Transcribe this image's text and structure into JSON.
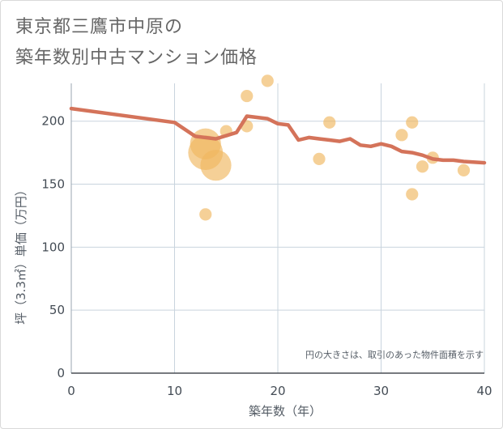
{
  "title_lines": [
    "東京都三鷹市中原の",
    "築年数別中古マンション価格"
  ],
  "chart_data": {
    "type": "scatter",
    "xlabel": "築年数（年）",
    "ylabel": "坪（3.3㎡）単価（万円）",
    "xlim": [
      0,
      40
    ],
    "ylim": [
      0,
      230
    ],
    "xticks": [
      0,
      10,
      20,
      30,
      40
    ],
    "yticks": [
      0,
      50,
      100,
      150,
      200
    ],
    "grid": true,
    "annotation": "円の大きさは、取引のあった物件面積を示す",
    "colors": {
      "line": "#d4735a",
      "bubble": "#f0b760",
      "grid": "#c9d4de"
    },
    "series": [
      {
        "type": "line",
        "points": [
          [
            0,
            210
          ],
          [
            10,
            199
          ],
          [
            12,
            188
          ],
          [
            14,
            186
          ],
          [
            16,
            191
          ],
          [
            17,
            204
          ],
          [
            19,
            202
          ],
          [
            20,
            198
          ],
          [
            21,
            197
          ],
          [
            22,
            185
          ],
          [
            23,
            187
          ],
          [
            24,
            186
          ],
          [
            25,
            185
          ],
          [
            26,
            184
          ],
          [
            27,
            186
          ],
          [
            28,
            181
          ],
          [
            29,
            180
          ],
          [
            30,
            182
          ],
          [
            31,
            180
          ],
          [
            32,
            176
          ],
          [
            33,
            175
          ],
          [
            34,
            173
          ],
          [
            35,
            170
          ],
          [
            36,
            169
          ],
          [
            37,
            169
          ],
          [
            38,
            168
          ],
          [
            40,
            167
          ]
        ]
      },
      {
        "type": "bubble",
        "points": [
          {
            "x": 13,
            "y": 126,
            "size": 2
          },
          {
            "x": 13,
            "y": 182,
            "size": 7
          },
          {
            "x": 13,
            "y": 175,
            "size": 8
          },
          {
            "x": 14,
            "y": 165,
            "size": 7
          },
          {
            "x": 15,
            "y": 192,
            "size": 2
          },
          {
            "x": 17,
            "y": 220,
            "size": 2
          },
          {
            "x": 17,
            "y": 196,
            "size": 2
          },
          {
            "x": 19,
            "y": 232,
            "size": 2
          },
          {
            "x": 24,
            "y": 170,
            "size": 2
          },
          {
            "x": 25,
            "y": 199,
            "size": 2
          },
          {
            "x": 32,
            "y": 189,
            "size": 2
          },
          {
            "x": 33,
            "y": 199,
            "size": 2
          },
          {
            "x": 33,
            "y": 142,
            "size": 2
          },
          {
            "x": 34,
            "y": 164,
            "size": 2
          },
          {
            "x": 35,
            "y": 171,
            "size": 2
          },
          {
            "x": 38,
            "y": 161,
            "size": 2
          }
        ]
      }
    ]
  }
}
